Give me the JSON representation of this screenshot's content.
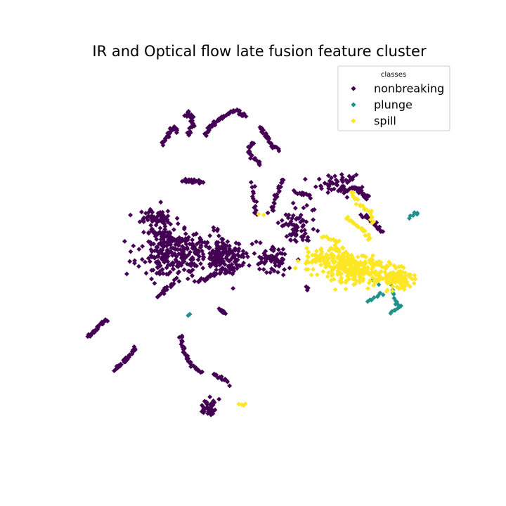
{
  "chart_data": {
    "type": "scatter",
    "title": "IR and Optical flow late fusion feature cluster",
    "xlabel": "",
    "ylabel": "",
    "axes_visible": false,
    "grid": false,
    "marker": "diamond",
    "xlim": [
      0,
      100
    ],
    "ylim": [
      0,
      100
    ],
    "legend": {
      "title": "classes",
      "placement": "top-right",
      "entries": [
        "nonbreaking",
        "plunge",
        "spill"
      ]
    },
    "series": [
      {
        "name": "nonbreaking",
        "color": "#440154",
        "clusters": [
          {
            "shape": "blob",
            "cx": 28,
            "cy": 52,
            "rx": 8,
            "ry": 6,
            "n": 260,
            "seed": 11
          },
          {
            "shape": "blob",
            "cx": 41,
            "cy": 51,
            "rx": 6,
            "ry": 5,
            "n": 170,
            "seed": 12
          },
          {
            "shape": "blob",
            "cx": 53,
            "cy": 50,
            "rx": 3.5,
            "ry": 3,
            "n": 70,
            "seed": 13
          },
          {
            "shape": "blob",
            "cx": 60,
            "cy": 59,
            "rx": 5,
            "ry": 5,
            "n": 70,
            "seed": 14
          },
          {
            "shape": "blob",
            "cx": 24,
            "cy": 61,
            "rx": 4,
            "ry": 3,
            "n": 60,
            "seed": 15
          },
          {
            "shape": "blob",
            "cx": 70,
            "cy": 70,
            "rx": 5,
            "ry": 2.5,
            "n": 55,
            "seed": 16
          },
          {
            "shape": "blob",
            "cx": 37,
            "cy": 11,
            "rx": 1.8,
            "ry": 2,
            "n": 40,
            "seed": 17
          },
          {
            "shape": "path",
            "pts": [
              [
                25,
                80.5
              ],
              [
                26,
                82
              ],
              [
                28,
                85
              ],
              [
                29,
                84
              ]
            ],
            "n": 30,
            "seed": 18
          },
          {
            "shape": "path",
            "pts": [
              [
                31.5,
                83
              ],
              [
                33,
                86
              ],
              [
                32,
                89
              ],
              [
                31,
                88
              ]
            ],
            "n": 28,
            "seed": 19
          },
          {
            "shape": "path",
            "pts": [
              [
                36,
                83
              ],
              [
                38,
                86
              ],
              [
                42,
                88.5
              ],
              [
                44,
                89.5
              ],
              [
                46,
                88
              ]
            ],
            "n": 55,
            "seed": 20
          },
          {
            "shape": "path",
            "pts": [
              [
                50,
                85
              ],
              [
                52,
                82
              ],
              [
                53,
                80
              ],
              [
                55,
                79
              ]
            ],
            "n": 28,
            "seed": 21
          },
          {
            "shape": "path",
            "pts": [
              [
                48,
                81
              ],
              [
                47,
                79
              ],
              [
                48,
                77
              ],
              [
                50,
                75
              ]
            ],
            "n": 22,
            "seed": 22
          },
          {
            "shape": "path",
            "pts": [
              [
                30.5,
                71
              ],
              [
                33,
                70.8
              ],
              [
                35,
                70.3
              ]
            ],
            "n": 24,
            "seed": 23
          },
          {
            "shape": "path",
            "pts": [
              [
                73,
                69
              ],
              [
                75,
                68.5
              ],
              [
                77,
                66.5
              ],
              [
                77,
                66
              ]
            ],
            "n": 40,
            "seed": 24
          },
          {
            "shape": "path",
            "pts": [
              [
                76,
                62
              ],
              [
                78,
                60.5
              ],
              [
                80,
                58.5
              ],
              [
                81,
                57.5
              ]
            ],
            "n": 18,
            "seed": 25
          },
          {
            "shape": "path",
            "pts": [
              [
                6.5,
                30
              ],
              [
                8.5,
                32
              ],
              [
                10,
                33.5
              ],
              [
                11,
                34
              ]
            ],
            "n": 30,
            "seed": 26
          },
          {
            "shape": "path",
            "pts": [
              [
                13,
                21
              ],
              [
                15,
                23
              ],
              [
                17,
                25
              ],
              [
                18,
                27
              ]
            ],
            "n": 28,
            "seed": 27
          },
          {
            "shape": "path",
            "pts": [
              [
                30,
                30
              ],
              [
                31,
                25
              ],
              [
                33,
                22
              ],
              [
                35,
                20.5
              ]
            ],
            "n": 38,
            "seed": 28
          },
          {
            "shape": "path",
            "pts": [
              [
                38,
                20
              ],
              [
                40,
                19
              ],
              [
                42,
                17.5
              ]
            ],
            "n": 14,
            "seed": 29
          },
          {
            "shape": "path",
            "pts": [
              [
                22,
                58
              ],
              [
                26,
                56
              ],
              [
                31,
                55
              ]
            ],
            "n": 30,
            "seed": 30
          },
          {
            "shape": "path",
            "pts": [
              [
                34,
                44
              ],
              [
                38,
                46
              ],
              [
                41,
                47.5
              ],
              [
                44,
                48
              ]
            ],
            "n": 26,
            "seed": 31
          },
          {
            "shape": "path",
            "pts": [
              [
                53,
                63
              ],
              [
                54,
                66
              ],
              [
                55,
                69
              ],
              [
                56,
                71.5
              ]
            ],
            "n": 20,
            "seed": 32
          },
          {
            "shape": "path",
            "pts": [
              [
                24,
                40
              ],
              [
                26,
                42
              ],
              [
                28,
                44
              ]
            ],
            "n": 16,
            "seed": 33
          },
          {
            "shape": "path",
            "pts": [
              [
                48,
                70
              ],
              [
                48.5,
                66
              ],
              [
                49,
                62
              ]
            ],
            "n": 14,
            "seed": 34
          },
          {
            "shape": "path",
            "pts": [
              [
                40,
                37
              ],
              [
                41,
                36
              ]
            ],
            "n": 10,
            "seed": 35
          },
          {
            "shape": "path",
            "pts": [
              [
                59,
                68
              ],
              [
                61,
                67.5
              ],
              [
                63,
                66.5
              ]
            ],
            "n": 14,
            "seed": 36
          },
          {
            "shape": "path",
            "pts": [
              [
                62,
                42.5
              ],
              [
                62.3,
                42.4
              ]
            ],
            "n": 3,
            "seed": 37
          }
        ]
      },
      {
        "name": "plunge",
        "color": "#21918c",
        "clusters": [
          {
            "shape": "path",
            "pts": [
              [
                83,
                44
              ],
              [
                84,
                41
              ],
              [
                85,
                38
              ]
            ],
            "n": 12,
            "seed": 41
          },
          {
            "shape": "path",
            "pts": [
              [
                77,
                39
              ],
              [
                79,
                40
              ],
              [
                81,
                41.5
              ]
            ],
            "n": 8,
            "seed": 42
          },
          {
            "shape": "path",
            "pts": [
              [
                83,
                36
              ],
              [
                85,
                37.5
              ],
              [
                86,
                38
              ]
            ],
            "n": 8,
            "seed": 43
          },
          {
            "shape": "path",
            "pts": [
              [
                88,
                61
              ],
              [
                90,
                62.5
              ]
            ],
            "n": 6,
            "seed": 44
          },
          {
            "shape": "path",
            "pts": [
              [
                32,
                35.5
              ],
              [
                32.2,
                35.6
              ]
            ],
            "n": 2,
            "seed": 45
          },
          {
            "shape": "path",
            "pts": [
              [
                79,
                45
              ],
              [
                80,
                44
              ]
            ],
            "n": 5,
            "seed": 46
          }
        ]
      },
      {
        "name": "spill",
        "color": "#fde725",
        "clusters": [
          {
            "shape": "blob",
            "cx": 76,
            "cy": 47,
            "rx": 9,
            "ry": 3.5,
            "n": 240,
            "seed": 51
          },
          {
            "shape": "blob",
            "cx": 68,
            "cy": 50,
            "rx": 6,
            "ry": 3.5,
            "n": 130,
            "seed": 52
          },
          {
            "shape": "blob",
            "cx": 85,
            "cy": 45,
            "rx": 4,
            "ry": 2.5,
            "n": 80,
            "seed": 53
          },
          {
            "shape": "path",
            "pts": [
              [
                73,
                68
              ],
              [
                75,
                65
              ],
              [
                78,
                62.5
              ],
              [
                79,
                60
              ]
            ],
            "n": 22,
            "seed": 54
          },
          {
            "shape": "path",
            "pts": [
              [
                72,
                61
              ],
              [
                75,
                59
              ],
              [
                77,
                57
              ],
              [
                78,
                55
              ]
            ],
            "n": 22,
            "seed": 55
          },
          {
            "shape": "path",
            "pts": [
              [
                66,
                56
              ],
              [
                68,
                55.5
              ],
              [
                70,
                55
              ]
            ],
            "n": 10,
            "seed": 56
          },
          {
            "shape": "path",
            "pts": [
              [
                45,
                12
              ],
              [
                46,
                11.5
              ]
            ],
            "n": 4,
            "seed": 57
          },
          {
            "shape": "path",
            "pts": [
              [
                50,
                62
              ],
              [
                50.3,
                61.8
              ]
            ],
            "n": 2,
            "seed": 58
          }
        ]
      }
    ]
  }
}
